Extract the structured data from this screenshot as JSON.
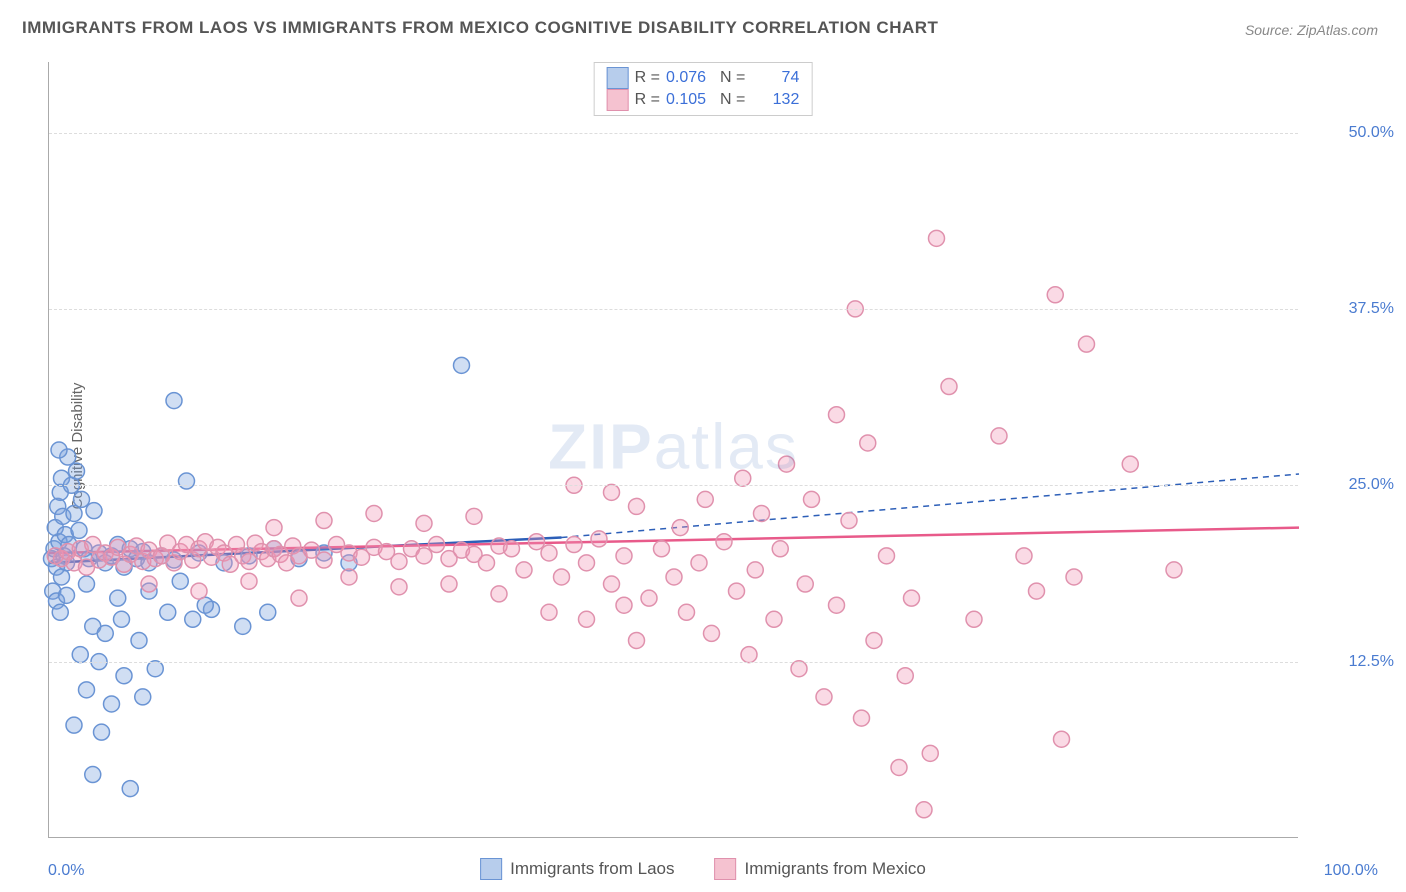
{
  "title": "IMMIGRANTS FROM LAOS VS IMMIGRANTS FROM MEXICO COGNITIVE DISABILITY CORRELATION CHART",
  "source": "Source: ZipAtlas.com",
  "ylabel": "Cognitive Disability",
  "watermark_bold": "ZIP",
  "watermark_light": "atlas",
  "chart": {
    "type": "scatter",
    "xlim": [
      0,
      100
    ],
    "ylim": [
      0,
      55
    ],
    "yticks": [
      {
        "v": 12.5,
        "label": "12.5%"
      },
      {
        "v": 25.0,
        "label": "25.0%"
      },
      {
        "v": 37.5,
        "label": "37.5%"
      },
      {
        "v": 50.0,
        "label": "50.0%"
      }
    ],
    "xtick_left": "0.0%",
    "xtick_right": "100.0%",
    "background_color": "#ffffff",
    "grid_color": "#dddddd",
    "tick_color": "#4a7bd0",
    "marker_radius": 8,
    "marker_stroke_width": 1.5,
    "series": [
      {
        "name": "Immigrants from Laos",
        "key": "laos",
        "fill": "rgba(120,160,220,0.35)",
        "stroke": "#6a94d4",
        "swatch_fill": "#b7cdec",
        "swatch_stroke": "#6a94d4",
        "R": "0.076",
        "N": "74",
        "trend": {
          "x1": 0,
          "y1": 19.5,
          "x2": 41,
          "y2": 21.3,
          "color": "#2d5fb8",
          "width": 2.5,
          "dash": ""
        },
        "trend_ext": {
          "x1": 41,
          "y1": 21.3,
          "x2": 100,
          "y2": 25.8,
          "color": "#2d5fb8",
          "width": 1.5,
          "dash": "6,5"
        },
        "points": [
          [
            0.2,
            19.8
          ],
          [
            0.4,
            20.5
          ],
          [
            0.6,
            19.2
          ],
          [
            0.8,
            21.0
          ],
          [
            1.0,
            18.5
          ],
          [
            1.2,
            20.0
          ],
          [
            1.4,
            19.5
          ],
          [
            0.5,
            22.0
          ],
          [
            0.7,
            23.5
          ],
          [
            0.9,
            24.5
          ],
          [
            1.1,
            22.8
          ],
          [
            1.3,
            21.5
          ],
          [
            1.6,
            20.8
          ],
          [
            0.3,
            17.5
          ],
          [
            0.6,
            16.8
          ],
          [
            0.9,
            16.0
          ],
          [
            1.4,
            17.2
          ],
          [
            1.0,
            25.5
          ],
          [
            1.8,
            25.0
          ],
          [
            2.2,
            26.0
          ],
          [
            2.6,
            24.0
          ],
          [
            2.0,
            23.0
          ],
          [
            2.4,
            21.8
          ],
          [
            2.8,
            20.5
          ],
          [
            3.2,
            19.8
          ],
          [
            3.6,
            23.2
          ],
          [
            4.0,
            20.2
          ],
          [
            4.5,
            19.5
          ],
          [
            5.0,
            20.0
          ],
          [
            5.5,
            20.8
          ],
          [
            6.0,
            19.2
          ],
          [
            6.5,
            20.5
          ],
          [
            7.0,
            19.8
          ],
          [
            7.5,
            20.3
          ],
          [
            8.0,
            19.5
          ],
          [
            9.0,
            20.0
          ],
          [
            10.0,
            19.7
          ],
          [
            11.0,
            25.3
          ],
          [
            12.0,
            20.2
          ],
          [
            14.0,
            19.5
          ],
          [
            16.0,
            20.0
          ],
          [
            1.5,
            27.0
          ],
          [
            0.8,
            27.5
          ],
          [
            3.5,
            15.0
          ],
          [
            4.5,
            14.5
          ],
          [
            5.8,
            15.5
          ],
          [
            7.2,
            14.0
          ],
          [
            9.5,
            16.0
          ],
          [
            11.5,
            15.5
          ],
          [
            13.0,
            16.2
          ],
          [
            15.5,
            15.0
          ],
          [
            2.5,
            13.0
          ],
          [
            4.0,
            12.5
          ],
          [
            6.0,
            11.5
          ],
          [
            8.5,
            12.0
          ],
          [
            12.5,
            16.5
          ],
          [
            17.5,
            16.0
          ],
          [
            3.0,
            10.5
          ],
          [
            5.0,
            9.5
          ],
          [
            7.5,
            10.0
          ],
          [
            2.0,
            8.0
          ],
          [
            4.2,
            7.5
          ],
          [
            3.5,
            4.5
          ],
          [
            6.5,
            3.5
          ],
          [
            10.0,
            31.0
          ],
          [
            33.0,
            33.5
          ],
          [
            18.0,
            20.5
          ],
          [
            20.0,
            19.8
          ],
          [
            22.0,
            20.2
          ],
          [
            24.0,
            19.5
          ],
          [
            3.0,
            18.0
          ],
          [
            5.5,
            17.0
          ],
          [
            8.0,
            17.5
          ],
          [
            10.5,
            18.2
          ]
        ]
      },
      {
        "name": "Immigrants from Mexico",
        "key": "mexico",
        "fill": "rgba(240,150,180,0.35)",
        "stroke": "#e091ad",
        "swatch_fill": "#f5c2d0",
        "swatch_stroke": "#e091ad",
        "R": "0.105",
        "N": "132",
        "trend": {
          "x1": 0,
          "y1": 20.2,
          "x2": 100,
          "y2": 22.0,
          "color": "#e85a8a",
          "width": 2.5,
          "dash": ""
        },
        "points": [
          [
            0.5,
            20.0
          ],
          [
            1.0,
            19.8
          ],
          [
            1.5,
            20.3
          ],
          [
            2.0,
            19.5
          ],
          [
            2.5,
            20.5
          ],
          [
            3.0,
            19.2
          ],
          [
            3.5,
            20.8
          ],
          [
            4.0,
            19.7
          ],
          [
            4.5,
            20.2
          ],
          [
            5.0,
            19.9
          ],
          [
            5.5,
            20.6
          ],
          [
            6.0,
            19.4
          ],
          [
            6.5,
            20.1
          ],
          [
            7.0,
            20.7
          ],
          [
            7.5,
            19.6
          ],
          [
            8.0,
            20.4
          ],
          [
            8.5,
            19.8
          ],
          [
            9.0,
            20.0
          ],
          [
            9.5,
            20.9
          ],
          [
            10.0,
            19.5
          ],
          [
            10.5,
            20.3
          ],
          [
            11.0,
            20.8
          ],
          [
            11.5,
            19.7
          ],
          [
            12.0,
            20.5
          ],
          [
            12.5,
            21.0
          ],
          [
            13.0,
            19.9
          ],
          [
            13.5,
            20.6
          ],
          [
            14.0,
            20.2
          ],
          [
            14.5,
            19.4
          ],
          [
            15.0,
            20.8
          ],
          [
            15.5,
            20.0
          ],
          [
            16.0,
            19.6
          ],
          [
            16.5,
            20.9
          ],
          [
            17.0,
            20.3
          ],
          [
            17.5,
            19.8
          ],
          [
            18.0,
            20.5
          ],
          [
            18.5,
            20.1
          ],
          [
            19.0,
            19.5
          ],
          [
            19.5,
            20.7
          ],
          [
            20.0,
            20.0
          ],
          [
            21.0,
            20.4
          ],
          [
            22.0,
            19.7
          ],
          [
            23.0,
            20.8
          ],
          [
            24.0,
            20.2
          ],
          [
            25.0,
            19.9
          ],
          [
            26.0,
            20.6
          ],
          [
            27.0,
            20.3
          ],
          [
            28.0,
            19.6
          ],
          [
            29.0,
            20.5
          ],
          [
            30.0,
            20.0
          ],
          [
            31.0,
            20.8
          ],
          [
            32.0,
            19.8
          ],
          [
            33.0,
            20.4
          ],
          [
            34.0,
            20.1
          ],
          [
            35.0,
            19.5
          ],
          [
            36.0,
            20.7
          ],
          [
            8.0,
            18.0
          ],
          [
            12.0,
            17.5
          ],
          [
            16.0,
            18.2
          ],
          [
            20.0,
            17.0
          ],
          [
            24.0,
            18.5
          ],
          [
            28.0,
            17.8
          ],
          [
            32.0,
            18.0
          ],
          [
            36.0,
            17.3
          ],
          [
            18.0,
            22.0
          ],
          [
            22.0,
            22.5
          ],
          [
            26.0,
            23.0
          ],
          [
            30.0,
            22.3
          ],
          [
            34.0,
            22.8
          ],
          [
            37.0,
            20.5
          ],
          [
            38.0,
            19.0
          ],
          [
            39.0,
            21.0
          ],
          [
            40.0,
            20.2
          ],
          [
            41.0,
            18.5
          ],
          [
            42.0,
            20.8
          ],
          [
            43.0,
            19.5
          ],
          [
            44.0,
            21.2
          ],
          [
            45.0,
            18.0
          ],
          [
            46.0,
            20.0
          ],
          [
            40.0,
            16.0
          ],
          [
            43.0,
            15.5
          ],
          [
            46.0,
            16.5
          ],
          [
            42.0,
            25.0
          ],
          [
            45.0,
            24.5
          ],
          [
            47.0,
            23.5
          ],
          [
            47.0,
            14.0
          ],
          [
            48.0,
            17.0
          ],
          [
            49.0,
            20.5
          ],
          [
            50.0,
            18.5
          ],
          [
            50.5,
            22.0
          ],
          [
            51.0,
            16.0
          ],
          [
            52.0,
            19.5
          ],
          [
            52.5,
            24.0
          ],
          [
            53.0,
            14.5
          ],
          [
            54.0,
            21.0
          ],
          [
            55.0,
            17.5
          ],
          [
            55.5,
            25.5
          ],
          [
            56.0,
            13.0
          ],
          [
            56.5,
            19.0
          ],
          [
            57.0,
            23.0
          ],
          [
            58.0,
            15.5
          ],
          [
            58.5,
            20.5
          ],
          [
            59.0,
            26.5
          ],
          [
            60.0,
            12.0
          ],
          [
            60.5,
            18.0
          ],
          [
            61.0,
            24.0
          ],
          [
            62.0,
            10.0
          ],
          [
            63.0,
            16.5
          ],
          [
            64.0,
            22.5
          ],
          [
            63.0,
            30.0
          ],
          [
            64.5,
            37.5
          ],
          [
            65.0,
            8.5
          ],
          [
            66.0,
            14.0
          ],
          [
            67.0,
            20.0
          ],
          [
            68.0,
            5.0
          ],
          [
            68.5,
            11.5
          ],
          [
            69.0,
            17.0
          ],
          [
            70.0,
            2.0
          ],
          [
            65.5,
            28.0
          ],
          [
            71.0,
            42.5
          ],
          [
            72.0,
            32.0
          ],
          [
            74.0,
            15.5
          ],
          [
            76.0,
            28.5
          ],
          [
            78.0,
            20.0
          ],
          [
            80.5,
            38.5
          ],
          [
            81.0,
            7.0
          ],
          [
            82.0,
            18.5
          ],
          [
            83.0,
            35.0
          ],
          [
            86.5,
            26.5
          ],
          [
            90.0,
            19.0
          ],
          [
            70.5,
            6.0
          ],
          [
            79.0,
            17.5
          ]
        ]
      }
    ]
  },
  "legend_top": {
    "r_label": "R =",
    "n_label": "N ="
  },
  "legend_bottom": [
    {
      "key": "laos"
    },
    {
      "key": "mexico"
    }
  ]
}
